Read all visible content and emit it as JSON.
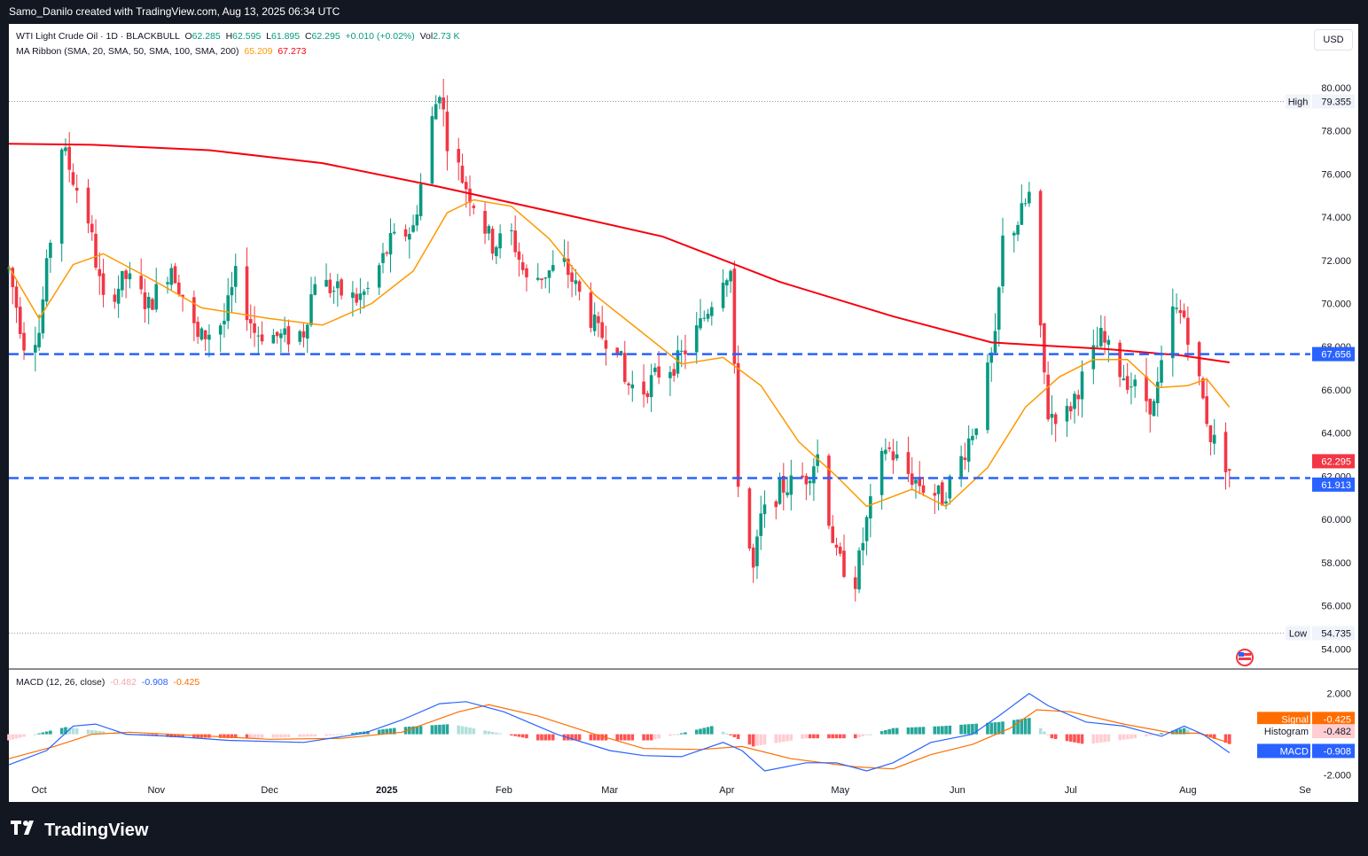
{
  "header": {
    "attribution": "Samo_Danilo created with TradingView.com, Aug 13, 2025 06:34 UTC"
  },
  "legend": {
    "symbol": "WTI Light Crude Oil · 1D · BLACKBULL",
    "open_label": "O",
    "open": "62.285",
    "high_label": "H",
    "high": "62.595",
    "low_label": "L",
    "low": "61.895",
    "close_label": "C",
    "close": "62.295",
    "change": "+0.010 (+0.02%)",
    "vol_label": "Vol",
    "vol": "2.73 K",
    "ma_label": "MA Ribbon (SMA, 20, SMA, 50, SMA, 100, SMA, 200)",
    "ma_vals": [
      "65.209",
      "67.273"
    ],
    "macd_label": "MACD (12, 26, close)",
    "macd_vals": [
      "-0.482",
      "-0.908",
      "-0.425"
    ]
  },
  "currency": "USD",
  "brand": {
    "name": "TradingView",
    "logo": "tradingview-logo"
  },
  "colors": {
    "up": "#089981",
    "down": "#f23645",
    "ma20": "#ff9800",
    "ma200": "#f7000f",
    "level": "#2962ff",
    "macd": "#2962ff",
    "signal": "#ff6d00"
  },
  "chart_data": [
    {
      "type": "candlestick",
      "title": "WTI Light Crude Oil · 1D · BLACKBULL",
      "x_range": [
        "2024-09-23",
        "2025-09-01"
      ],
      "x_ticks": [
        "Oct",
        "Nov",
        "Dec",
        "2025",
        "Feb",
        "Mar",
        "Apr",
        "May",
        "Jun",
        "Jul",
        "Aug",
        "Se"
      ],
      "y_ticks": [
        "80.000",
        "78.000",
        "76.000",
        "74.000",
        "72.000",
        "70.000",
        "68.000",
        "66.000",
        "64.000",
        "62.000",
        "60.000",
        "58.000",
        "56.000",
        "54.000"
      ],
      "ylim": [
        53.4,
        81.1
      ],
      "grid": false,
      "price_labels": {
        "high": {
          "label": "High",
          "value": "79.355"
        },
        "low": {
          "label": "Low",
          "value": "54.735"
        },
        "last": "62.295",
        "level_upper": "67.656",
        "level_lower": "61.913"
      },
      "levels": [
        67.656,
        61.913
      ],
      "overlays": [
        {
          "name": "SMA 20",
          "color": "#ff9800"
        },
        {
          "name": "SMA 200",
          "color": "#f7000f"
        }
      ],
      "series": [
        {
          "name": "price",
          "path": [
            [
              "2024-09-23",
              71.6
            ],
            [
              "2024-09-27",
              68.2
            ],
            [
              "2024-10-01",
              68.7
            ],
            [
              "2024-10-07",
              77.3
            ],
            [
              "2024-10-10",
              75.8
            ],
            [
              "2024-10-14",
              73.9
            ],
            [
              "2024-10-18",
              70.0
            ],
            [
              "2024-10-24",
              71.2
            ],
            [
              "2024-10-30",
              69.9
            ],
            [
              "2024-11-05",
              71.8
            ],
            [
              "2024-11-08",
              70.4
            ],
            [
              "2024-11-12",
              68.3
            ],
            [
              "2024-11-19",
              69.2
            ],
            [
              "2024-11-22",
              71.2
            ],
            [
              "2024-11-27",
              68.7
            ],
            [
              "2024-12-05",
              68.4
            ],
            [
              "2024-12-10",
              68.7
            ],
            [
              "2024-12-13",
              71.2
            ],
            [
              "2024-12-18",
              70.6
            ],
            [
              "2024-12-24",
              70.2
            ],
            [
              "2024-12-27",
              70.6
            ],
            [
              "2025-01-02",
              72.8
            ],
            [
              "2025-01-08",
              73.5
            ],
            [
              "2025-01-13",
              78.5
            ],
            [
              "2025-01-15",
              80.0
            ],
            [
              "2025-01-17",
              77.6
            ],
            [
              "2025-01-21",
              75.8
            ],
            [
              "2025-01-24",
              74.7
            ],
            [
              "2025-01-29",
              72.7
            ],
            [
              "2025-02-03",
              73.2
            ],
            [
              "2025-02-07",
              71.0
            ],
            [
              "2025-02-12",
              71.4
            ],
            [
              "2025-02-17",
              71.8
            ],
            [
              "2025-02-21",
              70.4
            ],
            [
              "2025-02-26",
              68.6
            ],
            [
              "2025-03-03",
              68.2
            ],
            [
              "2025-03-05",
              66.3
            ],
            [
              "2025-03-10",
              66.0
            ],
            [
              "2025-03-14",
              66.8
            ],
            [
              "2025-03-19",
              67.3
            ],
            [
              "2025-03-25",
              69.0
            ],
            [
              "2025-03-31",
              71.4
            ],
            [
              "2025-04-02",
              71.5
            ],
            [
              "2025-04-04",
              61.9
            ],
            [
              "2025-04-08",
              57.6
            ],
            [
              "2025-04-10",
              60.0
            ],
            [
              "2025-04-15",
              61.4
            ],
            [
              "2025-04-22",
              62.0
            ],
            [
              "2025-04-25",
              63.0
            ],
            [
              "2025-04-30",
              58.2
            ],
            [
              "2025-05-05",
              57.2
            ],
            [
              "2025-05-08",
              59.9
            ],
            [
              "2025-05-13",
              63.4
            ],
            [
              "2025-05-19",
              62.1
            ],
            [
              "2025-05-23",
              61.5
            ],
            [
              "2025-05-28",
              61.0
            ],
            [
              "2025-06-02",
              62.8
            ],
            [
              "2025-06-06",
              64.6
            ],
            [
              "2025-06-11",
              68.2
            ],
            [
              "2025-06-13",
              72.9
            ],
            [
              "2025-06-17",
              73.8
            ],
            [
              "2025-06-20",
              75.0
            ],
            [
              "2025-06-23",
              68.5
            ],
            [
              "2025-06-25",
              64.9
            ],
            [
              "2025-06-30",
              64.9
            ],
            [
              "2025-07-04",
              66.5
            ],
            [
              "2025-07-09",
              68.4
            ],
            [
              "2025-07-14",
              66.9
            ],
            [
              "2025-07-18",
              66.1
            ],
            [
              "2025-07-23",
              65.2
            ],
            [
              "2025-07-28",
              69.6
            ],
            [
              "2025-07-31",
              69.4
            ],
            [
              "2025-08-04",
              66.3
            ],
            [
              "2025-08-07",
              63.9
            ],
            [
              "2025-08-12",
              62.3
            ]
          ]
        },
        {
          "name": "SMA 20",
          "values": [
            [
              "2024-09-23",
              71.7
            ],
            [
              "2024-10-01",
              69.3
            ],
            [
              "2024-10-10",
              71.8
            ],
            [
              "2024-10-18",
              72.3
            ],
            [
              "2024-11-01",
              71.0
            ],
            [
              "2024-11-13",
              69.8
            ],
            [
              "2024-12-01",
              69.3
            ],
            [
              "2024-12-15",
              69.0
            ],
            [
              "2024-12-28",
              70.0
            ],
            [
              "2025-01-08",
              71.5
            ],
            [
              "2025-01-17",
              74.2
            ],
            [
              "2025-01-24",
              74.8
            ],
            [
              "2025-02-03",
              74.5
            ],
            [
              "2025-02-13",
              73.0
            ],
            [
              "2025-02-25",
              70.4
            ],
            [
              "2025-03-10",
              68.6
            ],
            [
              "2025-03-20",
              67.2
            ],
            [
              "2025-03-31",
              67.5
            ],
            [
              "2025-04-10",
              66.2
            ],
            [
              "2025-04-20",
              63.6
            ],
            [
              "2025-04-30",
              62.0
            ],
            [
              "2025-05-08",
              60.6
            ],
            [
              "2025-05-20",
              61.4
            ],
            [
              "2025-05-29",
              60.6
            ],
            [
              "2025-06-09",
              62.4
            ],
            [
              "2025-06-19",
              65.2
            ],
            [
              "2025-06-28",
              66.6
            ],
            [
              "2025-07-07",
              67.4
            ],
            [
              "2025-07-16",
              67.4
            ],
            [
              "2025-07-24",
              66.1
            ],
            [
              "2025-08-01",
              66.2
            ],
            [
              "2025-08-06",
              66.5
            ],
            [
              "2025-08-12",
              65.2
            ]
          ]
        },
        {
          "name": "SMA 200",
          "values": [
            [
              "2024-09-23",
              77.4
            ],
            [
              "2024-10-15",
              77.35
            ],
            [
              "2024-11-15",
              77.1
            ],
            [
              "2024-12-15",
              76.5
            ],
            [
              "2025-01-15",
              75.4
            ],
            [
              "2025-02-15",
              74.2
            ],
            [
              "2025-03-15",
              73.1
            ],
            [
              "2025-04-15",
              71.0
            ],
            [
              "2025-05-15",
              69.4
            ],
            [
              "2025-06-10",
              68.2
            ],
            [
              "2025-06-24",
              68.05
            ],
            [
              "2025-07-10",
              67.9
            ],
            [
              "2025-07-30",
              67.6
            ],
            [
              "2025-08-12",
              67.27
            ]
          ]
        }
      ]
    },
    {
      "type": "bar",
      "title": "MACD (12, 26, close)",
      "y_ticks": [
        "2.000",
        "-2.000"
      ],
      "ylim": [
        -2.15,
        2.55
      ],
      "labels": {
        "signal": {
          "label": "Signal",
          "value": "-0.425"
        },
        "histogram": {
          "label": "Histogram",
          "value": "-0.482"
        },
        "macd": {
          "label": "MACD",
          "value": "-0.908"
        }
      },
      "series": [
        {
          "name": "MACD",
          "values": [
            [
              "2024-09-23",
              -1.5
            ],
            [
              "2024-10-03",
              -0.8
            ],
            [
              "2024-10-10",
              0.4
            ],
            [
              "2024-10-16",
              0.5
            ],
            [
              "2024-10-24",
              0.0
            ],
            [
              "2024-11-05",
              -0.1
            ],
            [
              "2024-11-20",
              -0.3
            ],
            [
              "2024-12-10",
              -0.4
            ],
            [
              "2024-12-26",
              0.05
            ],
            [
              "2025-01-05",
              0.7
            ],
            [
              "2025-01-15",
              1.5
            ],
            [
              "2025-01-22",
              1.6
            ],
            [
              "2025-02-01",
              1.1
            ],
            [
              "2025-02-15",
              0.0
            ],
            [
              "2025-03-01",
              -0.8
            ],
            [
              "2025-03-10",
              -1.05
            ],
            [
              "2025-03-20",
              -1.1
            ],
            [
              "2025-03-31",
              -0.4
            ],
            [
              "2025-04-05",
              -0.8
            ],
            [
              "2025-04-11",
              -1.8
            ],
            [
              "2025-04-22",
              -1.4
            ],
            [
              "2025-04-30",
              -1.4
            ],
            [
              "2025-05-08",
              -1.8
            ],
            [
              "2025-05-15",
              -1.4
            ],
            [
              "2025-05-25",
              -0.4
            ],
            [
              "2025-06-05",
              0.0
            ],
            [
              "2025-06-12",
              0.9
            ],
            [
              "2025-06-20",
              2.0
            ],
            [
              "2025-06-25",
              1.4
            ],
            [
              "2025-07-05",
              0.6
            ],
            [
              "2025-07-15",
              0.4
            ],
            [
              "2025-07-25",
              -0.1
            ],
            [
              "2025-07-31",
              0.4
            ],
            [
              "2025-08-05",
              0.0
            ],
            [
              "2025-08-12",
              -0.908
            ]
          ]
        },
        {
          "name": "Signal",
          "values": [
            [
              "2024-09-23",
              -1.2
            ],
            [
              "2024-10-05",
              -0.6
            ],
            [
              "2024-10-15",
              0.0
            ],
            [
              "2024-10-25",
              0.1
            ],
            [
              "2024-11-10",
              -0.05
            ],
            [
              "2024-12-01",
              -0.25
            ],
            [
              "2024-12-20",
              -0.2
            ],
            [
              "2025-01-05",
              0.1
            ],
            [
              "2025-01-20",
              1.1
            ],
            [
              "2025-01-28",
              1.45
            ],
            [
              "2025-02-10",
              0.9
            ],
            [
              "2025-02-25",
              0.0
            ],
            [
              "2025-03-10",
              -0.7
            ],
            [
              "2025-03-25",
              -0.75
            ],
            [
              "2025-04-05",
              -0.6
            ],
            [
              "2025-04-18",
              -1.2
            ],
            [
              "2025-05-05",
              -1.6
            ],
            [
              "2025-05-15",
              -1.7
            ],
            [
              "2025-05-25",
              -1.0
            ],
            [
              "2025-06-05",
              -0.5
            ],
            [
              "2025-06-15",
              0.3
            ],
            [
              "2025-06-22",
              1.2
            ],
            [
              "2025-07-01",
              1.1
            ],
            [
              "2025-07-15",
              0.5
            ],
            [
              "2025-07-28",
              0.05
            ],
            [
              "2025-08-04",
              0.05
            ],
            [
              "2025-08-12",
              -0.425
            ]
          ]
        },
        {
          "name": "Histogram",
          "values": [
            [
              "2024-09-23",
              -0.3
            ],
            [
              "2024-10-08",
              0.35
            ],
            [
              "2024-10-20",
              0.1
            ],
            [
              "2024-11-05",
              -0.15
            ],
            [
              "2024-11-25",
              -0.2
            ],
            [
              "2024-12-15",
              -0.1
            ],
            [
              "2025-01-05",
              0.35
            ],
            [
              "2025-01-18",
              0.5
            ],
            [
              "2025-01-28",
              0.15
            ],
            [
              "2025-02-10",
              -0.3
            ],
            [
              "2025-02-25",
              -0.3
            ],
            [
              "2025-03-12",
              -0.3
            ],
            [
              "2025-03-28",
              0.4
            ],
            [
              "2025-04-08",
              -0.6
            ],
            [
              "2025-04-22",
              -0.2
            ],
            [
              "2025-05-05",
              -0.2
            ],
            [
              "2025-05-15",
              0.3
            ],
            [
              "2025-05-28",
              0.4
            ],
            [
              "2025-06-12",
              0.6
            ],
            [
              "2025-06-20",
              0.8
            ],
            [
              "2025-06-26",
              -0.2
            ],
            [
              "2025-07-05",
              -0.5
            ],
            [
              "2025-07-20",
              -0.15
            ],
            [
              "2025-07-31",
              0.3
            ],
            [
              "2025-08-06",
              -0.1
            ],
            [
              "2025-08-12",
              -0.482
            ]
          ]
        }
      ]
    }
  ]
}
